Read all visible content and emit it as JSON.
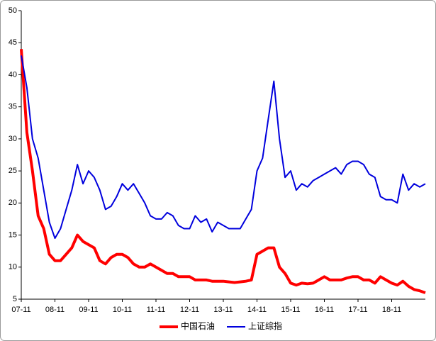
{
  "chart_data": {
    "type": "line",
    "categories": [
      "07-11",
      null,
      null,
      null,
      null,
      null,
      "08-11",
      null,
      null,
      null,
      null,
      null,
      "09-11",
      null,
      null,
      null,
      null,
      null,
      "10-11",
      null,
      null,
      null,
      null,
      null,
      "11-11",
      null,
      null,
      null,
      null,
      null,
      "12-11",
      null,
      null,
      null,
      null,
      null,
      "13-11",
      null,
      null,
      null,
      null,
      null,
      "14-11",
      null,
      null,
      null,
      null,
      null,
      "15-11",
      null,
      null,
      null,
      null,
      null,
      "16-11",
      null,
      null,
      null,
      null,
      null,
      "17-11",
      null,
      null,
      null,
      null,
      null,
      "18-11",
      null,
      null,
      null,
      null,
      null,
      null
    ],
    "series": [
      {
        "name": "中国石油",
        "color": "#ff0000",
        "values": [
          44,
          31,
          25,
          18,
          16,
          12,
          11,
          11,
          12,
          13,
          15,
          14,
          13.5,
          13,
          11,
          10.5,
          11.5,
          12,
          12,
          11.5,
          10.5,
          10,
          10,
          10.5,
          10,
          9.5,
          9,
          9,
          8.5,
          8.5,
          8.5,
          8,
          8,
          8,
          7.8,
          7.8,
          7.8,
          7.7,
          7.6,
          7.7,
          7.8,
          8,
          12,
          12.5,
          13,
          13,
          10,
          9,
          7.5,
          7.2,
          7.5,
          7.4,
          7.5,
          8,
          8.5,
          8,
          8,
          8,
          8.3,
          8.5,
          8.5,
          8,
          8,
          7.5,
          8.5,
          8,
          7.5,
          7.2,
          7.8,
          7,
          6.5,
          6.3,
          6
        ]
      },
      {
        "name": "上证综指",
        "color": "#0000dd",
        "values": [
          43,
          38,
          30,
          27,
          22,
          17,
          14.5,
          16,
          19,
          22,
          26,
          23,
          25,
          24,
          22,
          19,
          19.5,
          21,
          23,
          22,
          23,
          21.5,
          20,
          18,
          17.5,
          17.5,
          18.5,
          18,
          16.5,
          16,
          16,
          18,
          17,
          17.5,
          15.5,
          17,
          16.5,
          16,
          16,
          16,
          17.5,
          19,
          25,
          27,
          33,
          39,
          30,
          24,
          25,
          22,
          23,
          22.5,
          23.5,
          24,
          24.5,
          25,
          25.5,
          24.5,
          26,
          26.5,
          26.5,
          26,
          24.5,
          24,
          21,
          20.5,
          20.5,
          20,
          24.5,
          22,
          23,
          22.5,
          23
        ]
      }
    ],
    "ylim": [
      5,
      50
    ],
    "yticks": [
      5,
      10,
      15,
      20,
      25,
      30,
      35,
      40,
      45,
      50
    ],
    "legend": "bottom"
  }
}
